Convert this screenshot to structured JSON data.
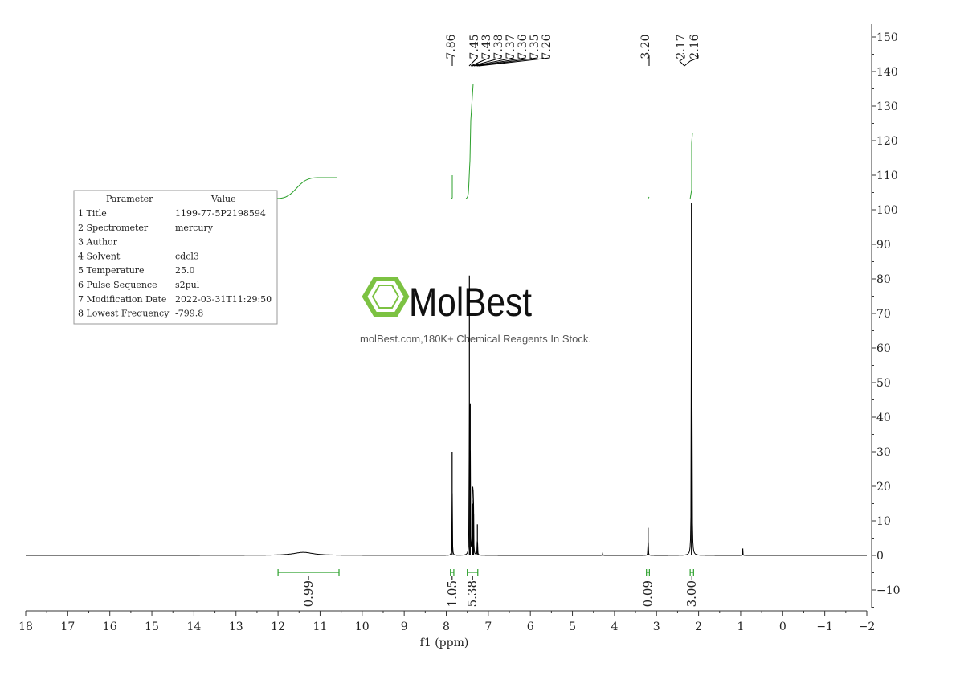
{
  "chart_data": {
    "type": "line",
    "xlabel": "f1 (ppm)",
    "xlim": [
      18,
      -2
    ],
    "ylim": [
      -15,
      152
    ],
    "x_ticks": [
      "18",
      "17",
      "16",
      "15",
      "14",
      "13",
      "12",
      "11",
      "10",
      "9",
      "8",
      "7",
      "6",
      "5",
      "4",
      "3",
      "2",
      "1",
      "0",
      "−1",
      "−2"
    ],
    "y_ticks": [
      "150",
      "140",
      "130",
      "120",
      "110",
      "100",
      "90",
      "80",
      "70",
      "60",
      "50",
      "40",
      "30",
      "20",
      "10",
      "0",
      "−10"
    ],
    "peak_labels": {
      "group_a": [
        "7.86"
      ],
      "group_b": [
        "7.45",
        "7.43",
        "7.38",
        "7.37",
        "7.36",
        "7.35",
        "7.26"
      ],
      "group_c": [
        "3.20"
      ],
      "group_d": [
        "2.17",
        "2.16"
      ]
    },
    "peaks": [
      {
        "ppm": 7.86,
        "height": 30
      },
      {
        "ppm": 7.45,
        "height": 81
      },
      {
        "ppm": 7.43,
        "height": 44
      },
      {
        "ppm": 7.38,
        "height": 16
      },
      {
        "ppm": 7.37,
        "height": 15
      },
      {
        "ppm": 7.36,
        "height": 14
      },
      {
        "ppm": 7.35,
        "height": 12
      },
      {
        "ppm": 7.26,
        "height": 9
      },
      {
        "ppm": 4.28,
        "height": 0.8
      },
      {
        "ppm": 3.2,
        "height": 8
      },
      {
        "ppm": 2.17,
        "height": 102
      },
      {
        "ppm": 2.16,
        "height": 100
      },
      {
        "ppm": 0.95,
        "height": 2
      }
    ],
    "broad_peak": {
      "ppm": 11.4,
      "height": 0.9
    },
    "integrals": [
      {
        "value": "0.99",
        "from": 12.0,
        "to": 10.55
      },
      {
        "value": "1.05",
        "from": 7.9,
        "to": 7.82
      },
      {
        "value": "5.38",
        "from": 7.5,
        "to": 7.25
      },
      {
        "value": "0.09",
        "from": 3.24,
        "to": 3.17
      },
      {
        "value": "3.00",
        "from": 2.2,
        "to": 2.12
      }
    ]
  },
  "parameters": {
    "header_param": "Parameter",
    "header_value": "Value",
    "rows": [
      {
        "label": "1 Title",
        "value": "1199-77-5P2198594"
      },
      {
        "label": "2 Spectrometer",
        "value": "mercury"
      },
      {
        "label": "3 Author",
        "value": ""
      },
      {
        "label": "4 Solvent",
        "value": "cdcl3"
      },
      {
        "label": "5 Temperature",
        "value": "25.0"
      },
      {
        "label": "6 Pulse Sequence",
        "value": "s2pul"
      },
      {
        "label": "7 Modification Date",
        "value": "2022-03-31T11:29:50"
      },
      {
        "label": "8 Lowest Frequency",
        "value": "-799.8"
      }
    ]
  },
  "watermark": {
    "brand": "MolBest",
    "tagline": "molBest.com,180K+ Chemical Reagents In Stock.",
    "color": "#7cc242"
  },
  "colors": {
    "spectrum": "#000000",
    "integral": "#2ca02c",
    "axis": "#333333"
  }
}
